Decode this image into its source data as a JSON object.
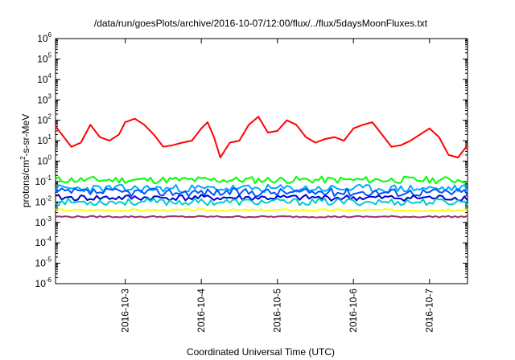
{
  "chart_data": {
    "type": "line",
    "title": "/data/run/goesPlots/archive/2016-10-07/12:00/flux/../flux/5daysMoonFluxes.txt",
    "xlabel": "Coordinated Universal Time (UTC)",
    "ylabel": {
      "base": "protons/cm",
      "sup": "2",
      "rest": "-s-sr-MeV"
    },
    "y_scale": "log",
    "ylim": [
      1e-06,
      1000000.0
    ],
    "xlim": [
      "2016-10-02T02:00",
      "2016-10-07T12:00"
    ],
    "grid": false,
    "legend": "none",
    "x_ticks": [
      "2016-10-3",
      "2016-10-4",
      "2016-10-5",
      "2016-10-6",
      "2016-10-7"
    ],
    "x_tick_dates": [
      "2016-10-03T00:00",
      "2016-10-04T00:00",
      "2016-10-05T00:00",
      "2016-10-06T00:00",
      "2016-10-07T00:00"
    ],
    "y_ticks": [
      {
        "base": "10",
        "exp": "-6"
      },
      {
        "base": "10",
        "exp": "-5"
      },
      {
        "base": "10",
        "exp": "-4"
      },
      {
        "base": "10",
        "exp": "-3"
      },
      {
        "base": "10",
        "exp": "-2"
      },
      {
        "base": "10",
        "exp": "-1"
      },
      {
        "base": "10",
        "exp": "0"
      },
      {
        "base": "10",
        "exp": "1"
      },
      {
        "base": "10",
        "exp": "2"
      },
      {
        "base": "10",
        "exp": "3"
      },
      {
        "base": "10",
        "exp": "4"
      },
      {
        "base": "10",
        "exp": "5"
      },
      {
        "base": "10",
        "exp": "6"
      }
    ],
    "series": [
      {
        "color": "#ff0000",
        "width": 2,
        "x": [
          "2016-10-02T02:00",
          "2016-10-02T04:00",
          "2016-10-02T07:00",
          "2016-10-02T10:00",
          "2016-10-02T13:00",
          "2016-10-02T16:00",
          "2016-10-02T19:00",
          "2016-10-02T22:00",
          "2016-10-03T00:00",
          "2016-10-03T03:00",
          "2016-10-03T06:00",
          "2016-10-03T09:00",
          "2016-10-03T12:00",
          "2016-10-03T15:00",
          "2016-10-03T18:00",
          "2016-10-03T21:00",
          "2016-10-04T00:00",
          "2016-10-04T02:00",
          "2016-10-04T04:00",
          "2016-10-04T06:00",
          "2016-10-04T09:00",
          "2016-10-04T12:00",
          "2016-10-04T15:00",
          "2016-10-04T18:00",
          "2016-10-04T21:00",
          "2016-10-05T00:00",
          "2016-10-05T03:00",
          "2016-10-05T06:00",
          "2016-10-05T09:00",
          "2016-10-05T12:00",
          "2016-10-05T15:00",
          "2016-10-05T18:00",
          "2016-10-05T21:00",
          "2016-10-06T00:00",
          "2016-10-06T03:00",
          "2016-10-06T06:00",
          "2016-10-06T09:00",
          "2016-10-06T12:00",
          "2016-10-06T15:00",
          "2016-10-06T18:00",
          "2016-10-06T21:00",
          "2016-10-07T00:00",
          "2016-10-07T03:00",
          "2016-10-07T06:00",
          "2016-10-07T09:00",
          "2016-10-07T12:00"
        ],
        "y": [
          50,
          20,
          5,
          8,
          60,
          15,
          10,
          20,
          80,
          120,
          60,
          20,
          5,
          6,
          8,
          10,
          40,
          80,
          15,
          1.5,
          8,
          10,
          60,
          150,
          25,
          30,
          100,
          60,
          15,
          8,
          12,
          15,
          10,
          40,
          60,
          80,
          20,
          5,
          6,
          10,
          20,
          40,
          15,
          2,
          1.5,
          6
        ]
      },
      {
        "color": "#00ff00",
        "width": 2,
        "base": 0.12,
        "spread": 2.2,
        "seed": 11
      },
      {
        "color": "#00aaff",
        "width": 2,
        "base": 0.045,
        "spread": 2.5,
        "seed": 23
      },
      {
        "color": "#0055ff",
        "width": 2,
        "base": 0.03,
        "spread": 2.5,
        "seed": 37
      },
      {
        "color": "#0000cc",
        "width": 2,
        "base": 0.016,
        "spread": 2.0,
        "seed": 41
      },
      {
        "color": "#00cccc",
        "width": 2,
        "base": 0.01,
        "spread": 2.2,
        "seed": 53
      },
      {
        "color": "#ffff00",
        "width": 2,
        "base": 0.004,
        "spread": 1.3,
        "seed": 67
      },
      {
        "color": "#993366",
        "width": 2,
        "base": 0.0019,
        "spread": 1.2,
        "seed": 79
      }
    ]
  }
}
